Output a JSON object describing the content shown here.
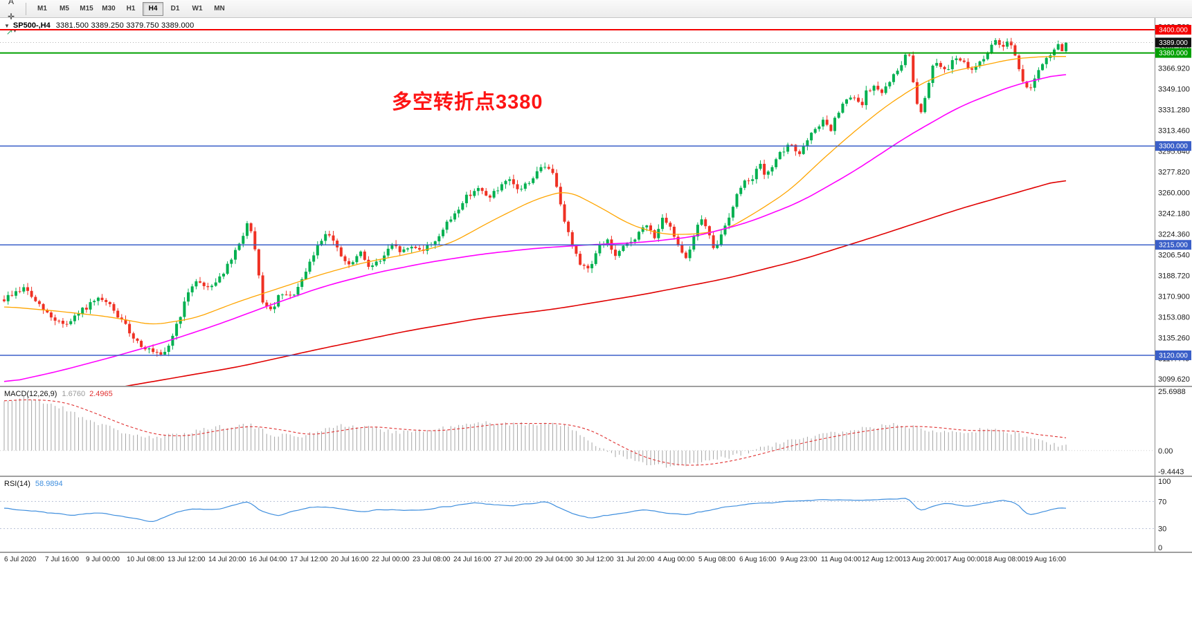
{
  "header": {
    "collapse_glyph": "▼",
    "symbol": "SP500-,H4",
    "ohlc_text": "3381.500 3389.250 3379.750 3389.000"
  },
  "annotation": {
    "text": "多空转折点3380",
    "color": "#fe1414"
  },
  "toolbar": {
    "icon_buttons": [
      {
        "name": "chart-window",
        "glyph": "▦",
        "color": "#666666"
      },
      {
        "name": "pointer-a",
        "glyph": "A",
        "color": "#333333"
      },
      {
        "name": "crosshair",
        "glyph": "✛",
        "color": "#333333"
      },
      {
        "name": "indicator-arrow",
        "glyph": "↗",
        "color": "#1f9d55",
        "caret": "▾"
      }
    ],
    "timeframes": [
      {
        "label": "M1"
      },
      {
        "label": "M5"
      },
      {
        "label": "M15"
      },
      {
        "label": "M30"
      },
      {
        "label": "H1"
      },
      {
        "label": "H4",
        "active": true
      },
      {
        "label": "D1"
      },
      {
        "label": "W1"
      },
      {
        "label": "MN"
      }
    ]
  },
  "chart_data": {
    "type": "candlestick",
    "symbol": "SP500-",
    "timeframe": "H4",
    "ohlc": {
      "open": 3381.5,
      "high": 3389.25,
      "low": 3379.75,
      "close": 3389.0
    },
    "candle_count": 272,
    "colors": {
      "up": "#00b050",
      "down": "#ef3124",
      "ma_fast": "#ffa500",
      "ma_mid": "#ff00ff",
      "ma_slow": "#e00000",
      "macd_hist": "#a6a6a6",
      "macd_signal": "#e03030",
      "rsi": "#3e8ede",
      "rsi_levels": "#b4bfd4"
    },
    "y_axis": {
      "min": 3094,
      "max": 3410,
      "ticks": [
        "3402.560",
        "3384.740",
        "3366.920",
        "3349.100",
        "3331.280",
        "3313.460",
        "3295.640",
        "3277.820",
        "3260.000",
        "3242.180",
        "3224.360",
        "3206.540",
        "3188.720",
        "3170.900",
        "3153.080",
        "3135.260",
        "3117.440",
        "3099.620"
      ]
    },
    "x_axis": {
      "labels": [
        "6 Jul 2020",
        "7 Jul 16:00",
        "9 Jul 00:00",
        "10 Jul 08:00",
        "13 Jul 12:00",
        "14 Jul 20:00",
        "16 Jul 04:00",
        "17 Jul 12:00",
        "20 Jul 16:00",
        "22 Jul 00:00",
        "23 Jul 08:00",
        "24 Jul 16:00",
        "27 Jul 20:00",
        "29 Jul 04:00",
        "30 Jul 12:00",
        "31 Jul 20:00",
        "4 Aug 00:00",
        "5 Aug 08:00",
        "6 Aug 16:00",
        "9 Aug 23:00",
        "11 Aug 04:00",
        "12 Aug 12:00",
        "13 Aug 20:00",
        "17 Aug 00:00",
        "18 Aug 08:00",
        "19 Aug 16:00"
      ]
    },
    "hlines": [
      {
        "price": 3400,
        "color": "#f40000",
        "badge": "3400.000",
        "width": 2
      },
      {
        "price": 3380,
        "color": "#00a000",
        "badge": "3380.000",
        "width": 2
      },
      {
        "price": 3300,
        "color": "#3a5fc8",
        "badge": "3300.000",
        "width": 1.5
      },
      {
        "price": 3215,
        "color": "#3a5fc8",
        "badge": "3215.000",
        "width": 1.5
      },
      {
        "price": 3120,
        "color": "#3a5fc8",
        "badge": "3120.000",
        "width": 1.5
      },
      {
        "price": 3389,
        "color": "#b0b0b0",
        "badge": "3389.000",
        "width": 1,
        "dash": "1 3",
        "badge_color": "#111111"
      }
    ],
    "price_path": [
      [
        0,
        3168
      ],
      [
        0.01,
        3174
      ],
      [
        0.02,
        3178
      ],
      [
        0.03,
        3165
      ],
      [
        0.045,
        3152
      ],
      [
        0.06,
        3146
      ],
      [
        0.075,
        3160
      ],
      [
        0.09,
        3168
      ],
      [
        0.1,
        3162
      ],
      [
        0.11,
        3150
      ],
      [
        0.125,
        3132
      ],
      [
        0.14,
        3122
      ],
      [
        0.15,
        3118
      ],
      [
        0.16,
        3140
      ],
      [
        0.17,
        3165
      ],
      [
        0.18,
        3186
      ],
      [
        0.19,
        3178
      ],
      [
        0.2,
        3184
      ],
      [
        0.21,
        3196
      ],
      [
        0.22,
        3212
      ],
      [
        0.23,
        3236
      ],
      [
        0.237,
        3205
      ],
      [
        0.243,
        3168
      ],
      [
        0.25,
        3156
      ],
      [
        0.26,
        3172
      ],
      [
        0.27,
        3170
      ],
      [
        0.28,
        3182
      ],
      [
        0.29,
        3204
      ],
      [
        0.3,
        3222
      ],
      [
        0.305,
        3228
      ],
      [
        0.315,
        3208
      ],
      [
        0.325,
        3196
      ],
      [
        0.335,
        3208
      ],
      [
        0.345,
        3196
      ],
      [
        0.355,
        3202
      ],
      [
        0.365,
        3214
      ],
      [
        0.375,
        3209
      ],
      [
        0.385,
        3214
      ],
      [
        0.395,
        3211
      ],
      [
        0.405,
        3218
      ],
      [
        0.415,
        3230
      ],
      [
        0.425,
        3243
      ],
      [
        0.435,
        3256
      ],
      [
        0.445,
        3264
      ],
      [
        0.455,
        3256
      ],
      [
        0.465,
        3262
      ],
      [
        0.475,
        3270
      ],
      [
        0.485,
        3262
      ],
      [
        0.495,
        3270
      ],
      [
        0.505,
        3280
      ],
      [
        0.512,
        3284
      ],
      [
        0.52,
        3268
      ],
      [
        0.53,
        3228
      ],
      [
        0.54,
        3202
      ],
      [
        0.55,
        3194
      ],
      [
        0.56,
        3212
      ],
      [
        0.568,
        3220
      ],
      [
        0.575,
        3204
      ],
      [
        0.585,
        3214
      ],
      [
        0.595,
        3222
      ],
      [
        0.605,
        3232
      ],
      [
        0.612,
        3222
      ],
      [
        0.62,
        3236
      ],
      [
        0.628,
        3228
      ],
      [
        0.635,
        3216
      ],
      [
        0.642,
        3204
      ],
      [
        0.65,
        3222
      ],
      [
        0.655,
        3240
      ],
      [
        0.662,
        3228
      ],
      [
        0.668,
        3210
      ],
      [
        0.675,
        3222
      ],
      [
        0.685,
        3246
      ],
      [
        0.695,
        3268
      ],
      [
        0.705,
        3274
      ],
      [
        0.712,
        3283
      ],
      [
        0.718,
        3272
      ],
      [
        0.725,
        3288
      ],
      [
        0.735,
        3296
      ],
      [
        0.742,
        3302
      ],
      [
        0.748,
        3292
      ],
      [
        0.755,
        3302
      ],
      [
        0.765,
        3316
      ],
      [
        0.772,
        3322
      ],
      [
        0.778,
        3312
      ],
      [
        0.785,
        3328
      ],
      [
        0.792,
        3338
      ],
      [
        0.8,
        3343
      ],
      [
        0.806,
        3333
      ],
      [
        0.812,
        3346
      ],
      [
        0.82,
        3352
      ],
      [
        0.826,
        3343
      ],
      [
        0.833,
        3356
      ],
      [
        0.84,
        3362
      ],
      [
        0.846,
        3373
      ],
      [
        0.852,
        3380
      ],
      [
        0.857,
        3352
      ],
      [
        0.862,
        3324
      ],
      [
        0.868,
        3346
      ],
      [
        0.874,
        3368
      ],
      [
        0.88,
        3374
      ],
      [
        0.886,
        3363
      ],
      [
        0.892,
        3373
      ],
      [
        0.898,
        3378
      ],
      [
        0.904,
        3370
      ],
      [
        0.91,
        3363
      ],
      [
        0.916,
        3370
      ],
      [
        0.922,
        3376
      ],
      [
        0.928,
        3383
      ],
      [
        0.934,
        3390
      ],
      [
        0.94,
        3386
      ],
      [
        0.945,
        3392
      ],
      [
        0.95,
        3385
      ],
      [
        0.955,
        3370
      ],
      [
        0.96,
        3352
      ],
      [
        0.965,
        3349
      ],
      [
        0.972,
        3361
      ],
      [
        0.98,
        3372
      ],
      [
        0.99,
        3384
      ],
      [
        1,
        3389
      ]
    ],
    "ma_orange": [
      [
        0,
        3162
      ],
      [
        0.05,
        3158
      ],
      [
        0.1,
        3153
      ],
      [
        0.14,
        3146
      ],
      [
        0.18,
        3152
      ],
      [
        0.22,
        3166
      ],
      [
        0.26,
        3178
      ],
      [
        0.3,
        3190
      ],
      [
        0.34,
        3200
      ],
      [
        0.38,
        3207
      ],
      [
        0.42,
        3216
      ],
      [
        0.46,
        3236
      ],
      [
        0.5,
        3254
      ],
      [
        0.53,
        3262
      ],
      [
        0.56,
        3248
      ],
      [
        0.59,
        3232
      ],
      [
        0.62,
        3224
      ],
      [
        0.65,
        3224
      ],
      [
        0.68,
        3228
      ],
      [
        0.71,
        3244
      ],
      [
        0.74,
        3262
      ],
      [
        0.77,
        3288
      ],
      [
        0.8,
        3312
      ],
      [
        0.83,
        3334
      ],
      [
        0.86,
        3352
      ],
      [
        0.89,
        3364
      ],
      [
        0.92,
        3369
      ],
      [
        0.95,
        3375
      ],
      [
        0.98,
        3377
      ],
      [
        1,
        3377
      ]
    ],
    "ma_magenta": [
      [
        0,
        3096
      ],
      [
        0.05,
        3106
      ],
      [
        0.1,
        3118
      ],
      [
        0.15,
        3131
      ],
      [
        0.2,
        3146
      ],
      [
        0.25,
        3163
      ],
      [
        0.3,
        3179
      ],
      [
        0.35,
        3191
      ],
      [
        0.4,
        3200
      ],
      [
        0.45,
        3207
      ],
      [
        0.5,
        3212
      ],
      [
        0.55,
        3215
      ],
      [
        0.6,
        3217
      ],
      [
        0.65,
        3222
      ],
      [
        0.7,
        3234
      ],
      [
        0.75,
        3252
      ],
      [
        0.8,
        3278
      ],
      [
        0.85,
        3308
      ],
      [
        0.9,
        3334
      ],
      [
        0.95,
        3352
      ],
      [
        1,
        3363
      ]
    ],
    "ma_red": [
      [
        0,
        3070
      ],
      [
        0.08,
        3088
      ],
      [
        0.15,
        3099
      ],
      [
        0.22,
        3110
      ],
      [
        0.3,
        3126
      ],
      [
        0.38,
        3141
      ],
      [
        0.45,
        3152
      ],
      [
        0.52,
        3160
      ],
      [
        0.6,
        3172
      ],
      [
        0.68,
        3186
      ],
      [
        0.75,
        3202
      ],
      [
        0.82,
        3222
      ],
      [
        0.9,
        3246
      ],
      [
        1,
        3272
      ]
    ],
    "macd": {
      "label": "MACD(12,26,9)",
      "value_main": "1.6760",
      "value_signal": "2.4965",
      "scale_max": "25.6988",
      "scale_zero": "0.00",
      "scale_min": "-9.4443",
      "path": [
        [
          0,
          21
        ],
        [
          0.02,
          22.5
        ],
        [
          0.05,
          19
        ],
        [
          0.08,
          13
        ],
        [
          0.11,
          8
        ],
        [
          0.14,
          5
        ],
        [
          0.17,
          7.5
        ],
        [
          0.2,
          10
        ],
        [
          0.23,
          11
        ],
        [
          0.25,
          7
        ],
        [
          0.28,
          6
        ],
        [
          0.31,
          10.5
        ],
        [
          0.34,
          10
        ],
        [
          0.37,
          8
        ],
        [
          0.4,
          8.5
        ],
        [
          0.43,
          10.5
        ],
        [
          0.46,
          12
        ],
        [
          0.49,
          11
        ],
        [
          0.52,
          12
        ],
        [
          0.545,
          6
        ],
        [
          0.57,
          -1
        ],
        [
          0.6,
          -5.5
        ],
        [
          0.63,
          -7
        ],
        [
          0.66,
          -5
        ],
        [
          0.69,
          -2
        ],
        [
          0.72,
          2
        ],
        [
          0.75,
          5
        ],
        [
          0.78,
          7.5
        ],
        [
          0.81,
          9.5
        ],
        [
          0.84,
          11
        ],
        [
          0.87,
          9
        ],
        [
          0.9,
          8
        ],
        [
          0.93,
          9
        ],
        [
          0.955,
          7
        ],
        [
          0.97,
          5
        ],
        [
          0.985,
          3
        ],
        [
          1,
          1.68
        ]
      ]
    },
    "rsi": {
      "label": "RSI(14)",
      "value": "58.9894",
      "levels": [
        70,
        30
      ],
      "scale_labels": [
        "100",
        "70",
        "30",
        "0"
      ],
      "path": [
        [
          0,
          60
        ],
        [
          0.03,
          55
        ],
        [
          0.06,
          50
        ],
        [
          0.09,
          53
        ],
        [
          0.12,
          45
        ],
        [
          0.14,
          40
        ],
        [
          0.16,
          52
        ],
        [
          0.18,
          60
        ],
        [
          0.2,
          58
        ],
        [
          0.22,
          65
        ],
        [
          0.23,
          70
        ],
        [
          0.245,
          52
        ],
        [
          0.26,
          50
        ],
        [
          0.28,
          58
        ],
        [
          0.3,
          63
        ],
        [
          0.32,
          58
        ],
        [
          0.34,
          55
        ],
        [
          0.36,
          58
        ],
        [
          0.38,
          56
        ],
        [
          0.4,
          59
        ],
        [
          0.42,
          63
        ],
        [
          0.44,
          68
        ],
        [
          0.46,
          65
        ],
        [
          0.48,
          64
        ],
        [
          0.5,
          68
        ],
        [
          0.512,
          70
        ],
        [
          0.53,
          55
        ],
        [
          0.55,
          45
        ],
        [
          0.565,
          49
        ],
        [
          0.58,
          52
        ],
        [
          0.6,
          58
        ],
        [
          0.62,
          54
        ],
        [
          0.64,
          50
        ],
        [
          0.66,
          56
        ],
        [
          0.68,
          62
        ],
        [
          0.7,
          66
        ],
        [
          0.72,
          68
        ],
        [
          0.74,
          70
        ],
        [
          0.76,
          72
        ],
        [
          0.78,
          73
        ],
        [
          0.8,
          71
        ],
        [
          0.82,
          73
        ],
        [
          0.84,
          74
        ],
        [
          0.852,
          75
        ],
        [
          0.862,
          55
        ],
        [
          0.874,
          63
        ],
        [
          0.886,
          67
        ],
        [
          0.898,
          65
        ],
        [
          0.91,
          62
        ],
        [
          0.922,
          66
        ],
        [
          0.934,
          71
        ],
        [
          0.945,
          72
        ],
        [
          0.955,
          66
        ],
        [
          0.963,
          49
        ],
        [
          0.972,
          52
        ],
        [
          0.982,
          56
        ],
        [
          0.992,
          60
        ],
        [
          1,
          58.99
        ]
      ]
    }
  }
}
